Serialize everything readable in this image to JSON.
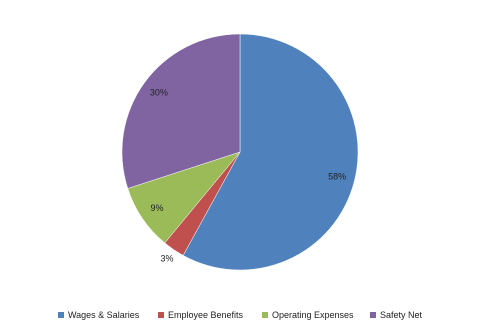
{
  "chart_data": {
    "type": "pie",
    "categories": [
      "Wages & Salaries",
      "Employee Benefits",
      "Operating Expenses",
      "Safety Net"
    ],
    "values": [
      58,
      3,
      9,
      30
    ],
    "value_labels": [
      "58%",
      "3%",
      "9%",
      "30%"
    ],
    "colors": [
      "#4f81bd",
      "#c0504d",
      "#9bbb59",
      "#8064a2"
    ],
    "legend": "bottom"
  }
}
